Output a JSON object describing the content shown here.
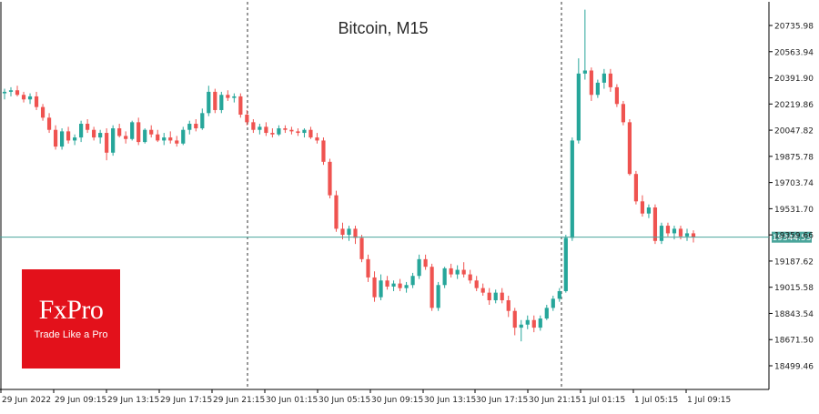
{
  "chart_data": {
    "type": "candlestick",
    "title": "Bitcoin, M15",
    "xlabel": "",
    "ylabel": "",
    "ylim": [
      18400,
      20900
    ],
    "y_ticks": [
      "20735.98",
      "20563.94",
      "20391.90",
      "20219.86",
      "20047.82",
      "19875.78",
      "19703.74",
      "19531.70",
      "19359.66",
      "19187.62",
      "19015.58",
      "18843.54",
      "18671.50",
      "18499.46"
    ],
    "x_ticks": [
      "29 Jun 2022",
      "29 Jun 09:15",
      "29 Jun 13:15",
      "29 Jun 17:15",
      "29 Jun 21:15",
      "30 Jun 01:15",
      "30 Jun 05:15",
      "30 Jun 09:15",
      "30 Jun 13:15",
      "30 Jun 17:15",
      "30 Jun 21:15",
      "1 Jul 01:15",
      "1 Jul 05:15",
      "1 Jul 09:15"
    ],
    "current_price": "19344.53",
    "current_price_value": 19344.53,
    "day_separators": [
      "29 Jun 22:00",
      "30 Jun 22:00"
    ],
    "grid": false,
    "bull_color": "#26a69a",
    "bear_color": "#ef5350",
    "price_line_color": "#4aa59b",
    "ohlc": [
      [
        20290,
        20320,
        20250,
        20300
      ],
      [
        20300,
        20330,
        20270,
        20310
      ],
      [
        20310,
        20340,
        20270,
        20280
      ],
      [
        20280,
        20300,
        20230,
        20250
      ],
      [
        20250,
        20290,
        20220,
        20270
      ],
      [
        20270,
        20300,
        20180,
        20200
      ],
      [
        20200,
        20220,
        20110,
        20130
      ],
      [
        20130,
        20160,
        20030,
        20050
      ],
      [
        20050,
        20080,
        19920,
        19940
      ],
      [
        19940,
        20060,
        19920,
        20040
      ],
      [
        20040,
        20070,
        19960,
        19980
      ],
      [
        19980,
        20020,
        19950,
        20000
      ],
      [
        20000,
        20110,
        19970,
        20090
      ],
      [
        20090,
        20120,
        20030,
        20050
      ],
      [
        20050,
        20070,
        19980,
        20000
      ],
      [
        20000,
        20050,
        19960,
        20030
      ],
      [
        20030,
        20060,
        19850,
        19900
      ],
      [
        19900,
        20080,
        19880,
        20060
      ],
      [
        20060,
        20090,
        20000,
        20010
      ],
      [
        20010,
        20040,
        19960,
        19990
      ],
      [
        19990,
        20110,
        19980,
        20100
      ],
      [
        20100,
        20130,
        19950,
        19970
      ],
      [
        19970,
        20060,
        19960,
        20050
      ],
      [
        20050,
        20080,
        20000,
        20020
      ],
      [
        20020,
        20050,
        19970,
        19980
      ],
      [
        19980,
        20030,
        19950,
        20000
      ],
      [
        20000,
        20040,
        19960,
        19980
      ],
      [
        19980,
        20010,
        19940,
        19960
      ],
      [
        19960,
        20070,
        19950,
        20050
      ],
      [
        20050,
        20110,
        20020,
        20090
      ],
      [
        20090,
        20120,
        20040,
        20060
      ],
      [
        20060,
        20190,
        20050,
        20160
      ],
      [
        20160,
        20340,
        20140,
        20300
      ],
      [
        20300,
        20320,
        20160,
        20180
      ],
      [
        20180,
        20300,
        20160,
        20280
      ],
      [
        20280,
        20310,
        20240,
        20260
      ],
      [
        20260,
        20290,
        20230,
        20270
      ],
      [
        20270,
        20290,
        20130,
        20150
      ],
      [
        20150,
        20180,
        20080,
        20100
      ],
      [
        20100,
        20120,
        20030,
        20050
      ],
      [
        20050,
        20090,
        20020,
        20070
      ],
      [
        20070,
        20100,
        20010,
        20030
      ],
      [
        20030,
        20060,
        20000,
        20020
      ],
      [
        20020,
        20080,
        20010,
        20060
      ],
      [
        20060,
        20080,
        20030,
        20050
      ],
      [
        20050,
        20070,
        20020,
        20040
      ],
      [
        20040,
        20060,
        20010,
        20030
      ],
      [
        20030,
        20060,
        20000,
        20050
      ],
      [
        20050,
        20070,
        19990,
        20000
      ],
      [
        20000,
        20030,
        19960,
        19980
      ],
      [
        19980,
        20000,
        19820,
        19840
      ],
      [
        19840,
        19860,
        19600,
        19620
      ],
      [
        19620,
        19650,
        19380,
        19400
      ],
      [
        19400,
        19440,
        19330,
        19360
      ],
      [
        19360,
        19420,
        19320,
        19400
      ],
      [
        19400,
        19420,
        19300,
        19340
      ],
      [
        19340,
        19360,
        19180,
        19200
      ],
      [
        19200,
        19230,
        19050,
        19080
      ],
      [
        19080,
        19120,
        18920,
        18950
      ],
      [
        18950,
        19100,
        18930,
        19060
      ],
      [
        19060,
        19090,
        19000,
        19020
      ],
      [
        19020,
        19060,
        18990,
        19040
      ],
      [
        19040,
        19070,
        18990,
        19010
      ],
      [
        19010,
        19050,
        18980,
        19030
      ],
      [
        19030,
        19110,
        19010,
        19090
      ],
      [
        19090,
        19230,
        19070,
        19200
      ],
      [
        19200,
        19230,
        19130,
        19150
      ],
      [
        19150,
        19170,
        18860,
        18880
      ],
      [
        18880,
        19050,
        18860,
        19030
      ],
      [
        19030,
        19150,
        19010,
        19140
      ],
      [
        19140,
        19170,
        19080,
        19100
      ],
      [
        19100,
        19160,
        19070,
        19130
      ],
      [
        19130,
        19180,
        19080,
        19100
      ],
      [
        19100,
        19130,
        19040,
        19060
      ],
      [
        19060,
        19090,
        18990,
        19010
      ],
      [
        19010,
        19040,
        18960,
        18980
      ],
      [
        18980,
        19010,
        18900,
        18930
      ],
      [
        18930,
        19000,
        18910,
        18980
      ],
      [
        18980,
        19010,
        18910,
        18930
      ],
      [
        18930,
        18960,
        18820,
        18860
      ],
      [
        18860,
        18880,
        18700,
        18750
      ],
      [
        18750,
        18800,
        18660,
        18770
      ],
      [
        18770,
        18830,
        18740,
        18800
      ],
      [
        18800,
        18830,
        18720,
        18750
      ],
      [
        18750,
        18830,
        18730,
        18810
      ],
      [
        18810,
        18900,
        18800,
        18880
      ],
      [
        18880,
        18960,
        18860,
        18940
      ],
      [
        18940,
        19010,
        18920,
        18990
      ],
      [
        18990,
        19360,
        18980,
        19340
      ],
      [
        19340,
        20000,
        19320,
        19980
      ],
      [
        19980,
        20520,
        19960,
        20420
      ],
      [
        20420,
        20840,
        20380,
        20440
      ],
      [
        20440,
        20460,
        20240,
        20280
      ],
      [
        20280,
        20380,
        20260,
        20360
      ],
      [
        20360,
        20450,
        20320,
        20420
      ],
      [
        20420,
        20450,
        20300,
        20330
      ],
      [
        20330,
        20350,
        20200,
        20220
      ],
      [
        20220,
        20240,
        20080,
        20100
      ],
      [
        20100,
        20120,
        19750,
        19760
      ],
      [
        19760,
        19780,
        19560,
        19580
      ],
      [
        19580,
        19620,
        19480,
        19500
      ],
      [
        19500,
        19560,
        19470,
        19540
      ],
      [
        19540,
        19560,
        19300,
        19320
      ],
      [
        19320,
        19440,
        19300,
        19420
      ],
      [
        19420,
        19440,
        19350,
        19370
      ],
      [
        19370,
        19420,
        19330,
        19400
      ],
      [
        19400,
        19420,
        19330,
        19350
      ],
      [
        19350,
        19400,
        19320,
        19370
      ],
      [
        19370,
        19390,
        19310,
        19344.53
      ]
    ]
  },
  "logo": {
    "name": "FxPro",
    "tagline": "Trade Like a Pro"
  }
}
